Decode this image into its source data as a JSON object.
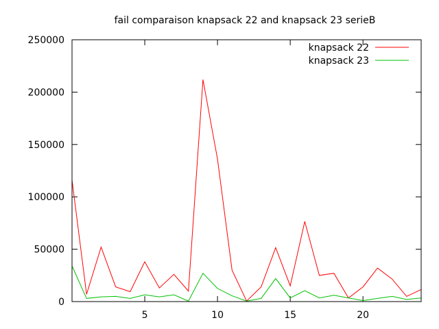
{
  "chart_data": {
    "type": "line",
    "title": "fail comparaison knapsack 22 and knapsack 23 serieB",
    "xlabel": "",
    "ylabel": "",
    "xlim": [
      0,
      24
    ],
    "ylim": [
      0,
      250000
    ],
    "x_ticks": [
      5,
      10,
      15,
      20
    ],
    "y_ticks": [
      0,
      50000,
      100000,
      150000,
      200000,
      250000
    ],
    "grid": false,
    "legend_position": "top-right",
    "x": [
      0,
      1,
      2,
      3,
      4,
      5,
      6,
      7,
      8,
      9,
      10,
      11,
      12,
      13,
      14,
      15,
      16,
      17,
      18,
      19,
      20,
      21,
      22,
      23,
      24
    ],
    "series": [
      {
        "name": "knapsack 22",
        "color": "#ff0000",
        "values": [
          116000,
          7000,
          52000,
          14000,
          9500,
          38000,
          13000,
          26000,
          10000,
          212000,
          136000,
          30000,
          500,
          14000,
          51500,
          15000,
          76500,
          25000,
          27000,
          3500,
          14000,
          32000,
          21500,
          5000,
          11500
        ]
      },
      {
        "name": "knapsack 23",
        "color": "#00c000",
        "values": [
          34000,
          3000,
          4500,
          5000,
          3000,
          6500,
          4500,
          6500,
          500,
          27000,
          12500,
          5500,
          500,
          3000,
          22000,
          3500,
          10500,
          3500,
          6000,
          3500,
          1000,
          3000,
          5000,
          2000,
          3500
        ]
      }
    ]
  }
}
